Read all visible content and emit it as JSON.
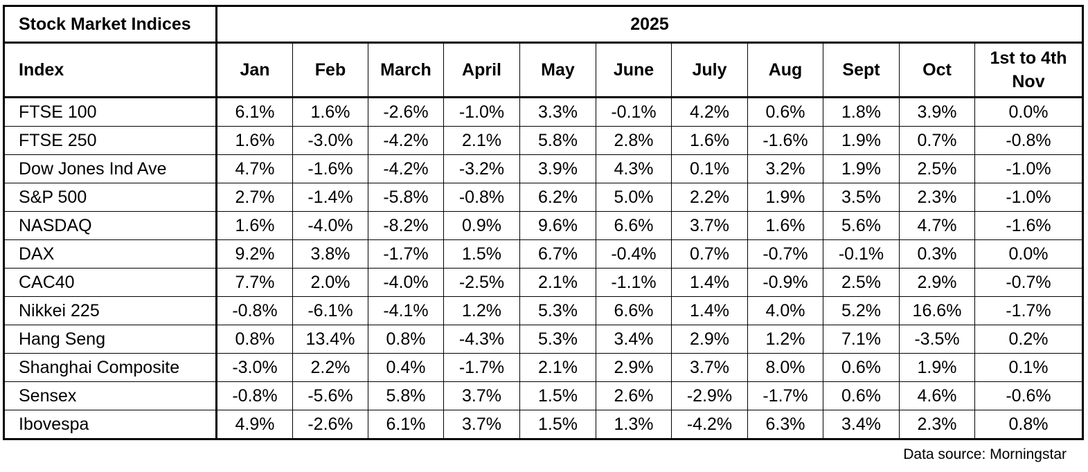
{
  "header": {
    "title": "Stock Market Indices",
    "year": "2025"
  },
  "table": {
    "columns": [
      "Index",
      "Jan",
      "Feb",
      "March",
      "April",
      "May",
      "June",
      "July",
      "Aug",
      "Sept",
      "Oct",
      "1st to 4th Nov"
    ],
    "rows": [
      [
        "FTSE 100",
        "6.1%",
        "1.6%",
        "-2.6%",
        "-1.0%",
        "3.3%",
        "-0.1%",
        "4.2%",
        "0.6%",
        "1.8%",
        "3.9%",
        "0.0%"
      ],
      [
        "FTSE 250",
        "1.6%",
        "-3.0%",
        "-4.2%",
        "2.1%",
        "5.8%",
        "2.8%",
        "1.6%",
        "-1.6%",
        "1.9%",
        "0.7%",
        "-0.8%"
      ],
      [
        "Dow Jones Ind Ave",
        "4.7%",
        "-1.6%",
        "-4.2%",
        "-3.2%",
        "3.9%",
        "4.3%",
        "0.1%",
        "3.2%",
        "1.9%",
        "2.5%",
        "-1.0%"
      ],
      [
        "S&P 500",
        "2.7%",
        "-1.4%",
        "-5.8%",
        "-0.8%",
        "6.2%",
        "5.0%",
        "2.2%",
        "1.9%",
        "3.5%",
        "2.3%",
        "-1.0%"
      ],
      [
        "NASDAQ",
        "1.6%",
        "-4.0%",
        "-8.2%",
        "0.9%",
        "9.6%",
        "6.6%",
        "3.7%",
        "1.6%",
        "5.6%",
        "4.7%",
        "-1.6%"
      ],
      [
        "DAX",
        "9.2%",
        "3.8%",
        "-1.7%",
        "1.5%",
        "6.7%",
        "-0.4%",
        "0.7%",
        "-0.7%",
        "-0.1%",
        "0.3%",
        "0.0%"
      ],
      [
        "CAC40",
        "7.7%",
        "2.0%",
        "-4.0%",
        "-2.5%",
        "2.1%",
        "-1.1%",
        "1.4%",
        "-0.9%",
        "2.5%",
        "2.9%",
        "-0.7%"
      ],
      [
        "Nikkei 225",
        "-0.8%",
        "-6.1%",
        "-4.1%",
        "1.2%",
        "5.3%",
        "6.6%",
        "1.4%",
        "4.0%",
        "5.2%",
        "16.6%",
        "-1.7%"
      ],
      [
        "Hang Seng",
        "0.8%",
        "13.4%",
        "0.8%",
        "-4.3%",
        "5.3%",
        "3.4%",
        "2.9%",
        "1.2%",
        "7.1%",
        "-3.5%",
        "0.2%"
      ],
      [
        "Shanghai Composite",
        "-3.0%",
        "2.2%",
        "0.4%",
        "-1.7%",
        "2.1%",
        "2.9%",
        "3.7%",
        "8.0%",
        "0.6%",
        "1.9%",
        "0.1%"
      ],
      [
        "Sensex",
        "-0.8%",
        "-5.6%",
        "5.8%",
        "3.7%",
        "1.5%",
        "2.6%",
        "-2.9%",
        "-1.7%",
        "0.6%",
        "4.6%",
        "-0.6%"
      ],
      [
        "Ibovespa",
        "4.9%",
        "-2.6%",
        "6.1%",
        "3.7%",
        "1.5%",
        "1.3%",
        "-4.2%",
        "6.3%",
        "3.4%",
        "2.3%",
        "0.8%"
      ]
    ]
  },
  "source": "Data source: Morningstar"
}
